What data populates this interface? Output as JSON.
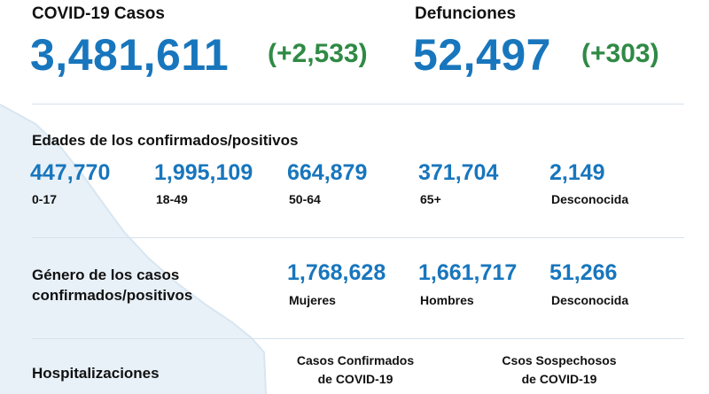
{
  "cases": {
    "label": "COVID-19 Casos",
    "total": "3,481,611",
    "delta": "(+2,533)"
  },
  "deaths": {
    "label": "Defunciones",
    "total": "52,497",
    "delta": "(+303)"
  },
  "ages": {
    "title": "Edades de los confirmados/positivos",
    "items": [
      {
        "value": "447,770",
        "label": "0-17"
      },
      {
        "value": "1,995,109",
        "label": "18-49"
      },
      {
        "value": "664,879",
        "label": "50-64"
      },
      {
        "value": "371,704",
        "label": "65+"
      },
      {
        "value": "2,149",
        "label": "Desconocida"
      }
    ]
  },
  "gender": {
    "title_line1": "Género de los casos",
    "title_line2": "confirmados/positivos",
    "items": [
      {
        "value": "1,768,628",
        "label": "Mujeres"
      },
      {
        "value": "1,661,717",
        "label": "Hombres"
      },
      {
        "value": "51,266",
        "label": "Desconocida"
      }
    ]
  },
  "hospital": {
    "title": "Hospitalizaciones",
    "col1_line1": "Casos Confirmados",
    "col1_line2": "de COVID-19",
    "col2_line1": "Csos Sospechosos",
    "col2_line2": "de COVID-19"
  },
  "colors": {
    "accent": "#1876bd",
    "delta_green": "#2f8a45",
    "map_fill": "#e6f0f7"
  }
}
